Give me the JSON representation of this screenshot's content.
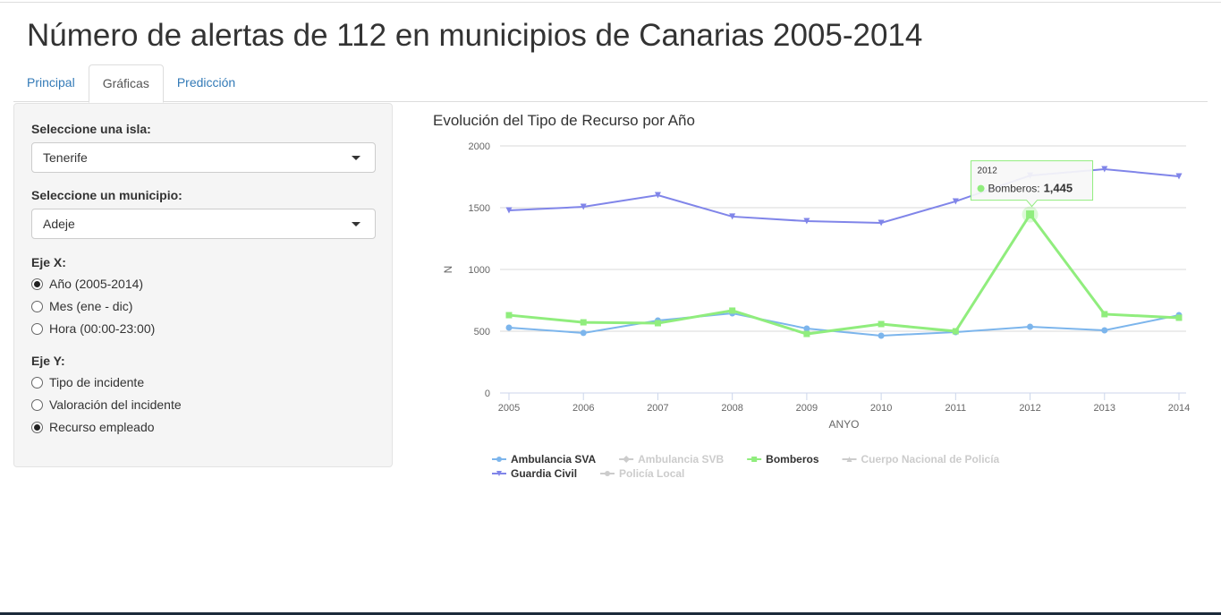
{
  "header": {
    "title": "Número de alertas de 112 en municipios de Canarias 2005-2014"
  },
  "tabs": {
    "items": [
      "Principal",
      "Gráficas",
      "Predicción"
    ],
    "active": 1
  },
  "sidebar": {
    "island": {
      "label": "Seleccione una isla:",
      "value": "Tenerife"
    },
    "municipality": {
      "label": "Seleccione un municipio:",
      "value": "Adeje"
    },
    "x_axis": {
      "label": "Eje X:",
      "options": [
        "Año (2005-2014)",
        "Mes (ene - dic)",
        "Hora (00:00-23:00)"
      ],
      "selected": 0
    },
    "y_axis": {
      "label": "Eje Y:",
      "options": [
        "Tipo de incidente",
        "Valoración del incidente",
        "Recurso empleado"
      ],
      "selected": 2
    }
  },
  "chart_data": {
    "type": "line",
    "title": "Evolución del Tipo de Recurso por Año",
    "x_label": "ANYO",
    "y_label": "N",
    "x": [
      2005,
      2006,
      2007,
      2008,
      2009,
      2010,
      2011,
      2012,
      2013,
      2014
    ],
    "xlim": [
      2005,
      2014
    ],
    "xticks": [
      2005,
      2006,
      2007,
      2008,
      2009,
      2010,
      2011,
      2012,
      2013,
      2014
    ],
    "ylim": [
      0,
      2000
    ],
    "yticks": [
      0,
      500,
      1000,
      1500,
      2000
    ],
    "grid": true,
    "series": [
      {
        "name": "Ambulancia SVA",
        "color": "#7cb5ec",
        "marker": "circle",
        "visible": true,
        "values": [
          529,
          486,
          587,
          645,
          522,
          464,
          493,
          536,
          507,
          630
        ]
      },
      {
        "name": "Ambulancia SVB",
        "color": "#434348",
        "marker": "diamond",
        "visible": false,
        "values": [
          null,
          null,
          null,
          null,
          null,
          null,
          null,
          null,
          null,
          null
        ]
      },
      {
        "name": "Bomberos",
        "color": "#90ed7d",
        "marker": "square",
        "visible": true,
        "values": [
          630,
          572,
          565,
          667,
          478,
          558,
          500,
          1445,
          638,
          609
        ]
      },
      {
        "name": "Cuerpo Nacional de Policía",
        "color": "#f7a35c",
        "marker": "triangle",
        "visible": false,
        "values": [
          null,
          null,
          null,
          null,
          null,
          null,
          null,
          null,
          null,
          null
        ]
      },
      {
        "name": "Guardia Civil",
        "color": "#8085e9",
        "marker": "triangle-down",
        "visible": true,
        "values": [
          1478,
          1507,
          1601,
          1428,
          1391,
          1377,
          1551,
          1760,
          1812,
          1754
        ]
      },
      {
        "name": "Policía Local",
        "color": "#f15c80",
        "marker": "circle",
        "visible": false,
        "values": [
          null,
          null,
          null,
          null,
          null,
          null,
          null,
          null,
          null,
          null
        ]
      }
    ],
    "tooltip": {
      "series_index": 2,
      "point_index": 7,
      "title": "2012",
      "label": "Bomberos:",
      "value_label": "1,445"
    }
  }
}
